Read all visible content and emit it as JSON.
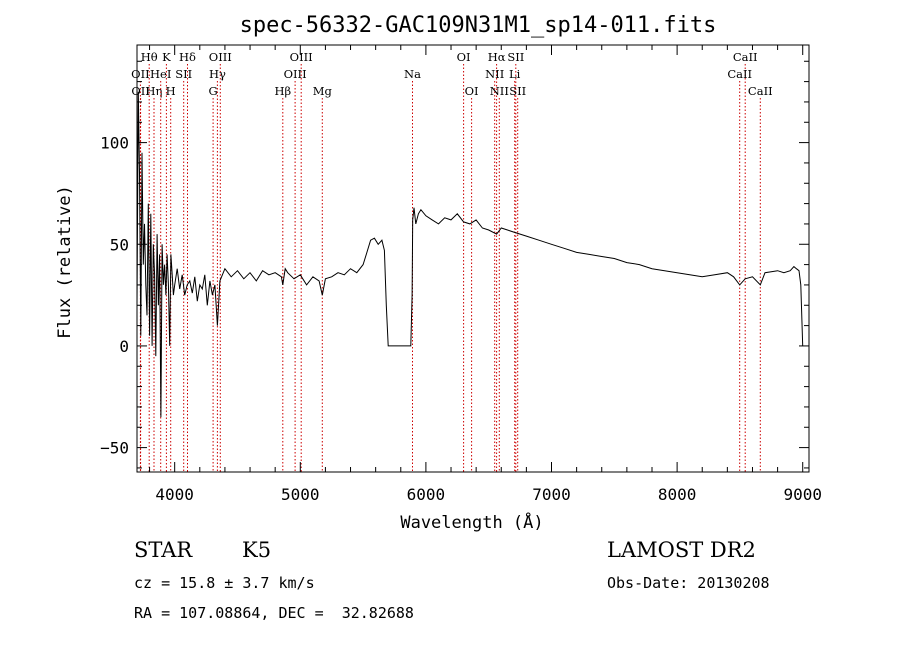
{
  "chart_data": {
    "type": "line",
    "title": "spec-56332-GAC109N31M1_sp14-011.fits",
    "xlabel": "Wavelength (Å)",
    "ylabel": "Flux (relative)",
    "xlim": [
      3700,
      9050
    ],
    "ylim": [
      -62,
      148
    ],
    "x_ticks": [
      4000,
      5000,
      6000,
      7000,
      8000,
      9000
    ],
    "y_ticks": [
      -50,
      0,
      50,
      100
    ],
    "grid": false,
    "line_color": "#000000",
    "marker_color": "#cc0000",
    "series": [
      {
        "x": [
          3700,
          3710,
          3720,
          3730,
          3740,
          3750,
          3760,
          3770,
          3780,
          3790,
          3800,
          3810,
          3820,
          3830,
          3840,
          3850,
          3860,
          3870,
          3880,
          3890,
          3900,
          3910,
          3920,
          3930,
          3940,
          3950,
          3960,
          3970,
          3980,
          3990,
          4000,
          4020,
          4040,
          4060,
          4080,
          4100,
          4120,
          4140,
          4160,
          4180,
          4200,
          4220,
          4240,
          4260,
          4280,
          4300,
          4320,
          4340,
          4360,
          4380,
          4400,
          4450,
          4500,
          4550,
          4600,
          4650,
          4700,
          4750,
          4800,
          4850,
          4861,
          4880,
          4900,
          4950,
          5000,
          5050,
          5100,
          5150,
          5175,
          5200,
          5250,
          5300,
          5350,
          5400,
          5450,
          5500,
          5530,
          5560,
          5590,
          5620,
          5650,
          5670,
          5685,
          5700,
          5800,
          5880,
          5890,
          5895,
          5905,
          5920,
          5940,
          5960,
          6000,
          6050,
          6100,
          6150,
          6200,
          6250,
          6300,
          6350,
          6400,
          6450,
          6500,
          6563,
          6600,
          6650,
          6700,
          6750,
          6800,
          6900,
          7000,
          7100,
          7200,
          7300,
          7400,
          7500,
          7600,
          7700,
          7800,
          7900,
          8000,
          8100,
          8200,
          8300,
          8400,
          8450,
          8498,
          8542,
          8600,
          8662,
          8700,
          8800,
          8850,
          8900,
          8930,
          8950,
          8970,
          8985,
          9000
        ],
        "y": [
          20,
          125,
          85,
          5,
          95,
          40,
          60,
          30,
          15,
          70,
          5,
          65,
          0,
          50,
          35,
          -5,
          55,
          20,
          45,
          -35,
          50,
          30,
          40,
          25,
          45,
          30,
          0,
          45,
          35,
          25,
          30,
          38,
          28,
          35,
          25,
          30,
          32,
          26,
          34,
          22,
          30,
          28,
          35,
          20,
          32,
          25,
          30,
          10,
          32,
          35,
          38,
          34,
          37,
          33,
          36,
          32,
          37,
          35,
          36,
          34,
          30,
          38,
          36,
          33,
          35,
          30,
          34,
          32,
          25,
          33,
          34,
          36,
          35,
          38,
          36,
          40,
          46,
          52,
          53,
          50,
          52,
          47,
          20,
          0,
          0,
          0,
          25,
          62,
          68,
          60,
          65,
          67,
          64,
          62,
          60,
          63,
          62,
          65,
          61,
          60,
          62,
          58,
          57,
          55,
          58,
          57,
          56,
          55,
          54,
          52,
          50,
          48,
          46,
          45,
          44,
          43,
          41,
          40,
          38,
          37,
          36,
          35,
          34,
          35,
          36,
          34,
          30,
          33,
          34,
          30,
          36,
          37,
          36,
          37,
          39,
          38,
          37,
          30,
          0
        ]
      }
    ],
    "line_markers": [
      {
        "label": "Hθ",
        "x": 3797,
        "row": 0
      },
      {
        "label": "OII",
        "x": 3727,
        "row": 1
      },
      {
        "label": "OII",
        "x": 3729,
        "row": 2
      },
      {
        "label": "Hη",
        "x": 3835,
        "row": 2
      },
      {
        "label": "HeI",
        "x": 3889,
        "row": 1
      },
      {
        "label": "K",
        "x": 3934,
        "row": 0
      },
      {
        "label": "SII",
        "x": 4072,
        "row": 1
      },
      {
        "label": "H",
        "x": 3968,
        "row": 2
      },
      {
        "label": "Hδ",
        "x": 4102,
        "row": 0
      },
      {
        "label": "OIII",
        "x": 4363,
        "row": 0
      },
      {
        "label": "Hγ",
        "x": 4340,
        "row": 1
      },
      {
        "label": "G",
        "x": 4306,
        "row": 2
      },
      {
        "label": "Hβ",
        "x": 4861,
        "row": 2
      },
      {
        "label": "OIII",
        "x": 5007,
        "row": 0
      },
      {
        "label": "OIII",
        "x": 4959,
        "row": 1
      },
      {
        "label": "Mg",
        "x": 5175,
        "row": 2
      },
      {
        "label": "Na",
        "x": 5893,
        "row": 1
      },
      {
        "label": "OI",
        "x": 6300,
        "row": 0
      },
      {
        "label": "OI",
        "x": 6364,
        "row": 2
      },
      {
        "label": "Hα",
        "x": 6563,
        "row": 0
      },
      {
        "label": "SII",
        "x": 6716,
        "row": 0
      },
      {
        "label": "NII",
        "x": 6548,
        "row": 1
      },
      {
        "label": "Li",
        "x": 6707,
        "row": 1
      },
      {
        "label": "NII",
        "x": 6584,
        "row": 2
      },
      {
        "label": "SII",
        "x": 6731,
        "row": 2
      },
      {
        "label": "CaII",
        "x": 8542,
        "row": 0
      },
      {
        "label": "CaII",
        "x": 8498,
        "row": 1
      },
      {
        "label": "CaII",
        "x": 8662,
        "row": 2
      }
    ]
  },
  "info": {
    "object_class": "STAR",
    "subclass": "K5",
    "survey": "LAMOST DR2",
    "redshift": "cz = 15.8 ± 3.7 km/s",
    "obs_date": "Obs-Date: 20130208",
    "coords": "RA = 107.08864, DEC =  32.82688"
  }
}
